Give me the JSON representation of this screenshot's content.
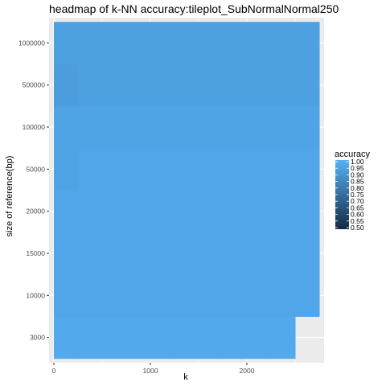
{
  "chart_data": {
    "type": "heatmap",
    "title": "headmap of k-NN accuracy:tileplot_SubNormalNormal250",
    "xlabel": "k",
    "ylabel": "size of reference(bp)",
    "x_ticks": [
      0,
      1000,
      2000
    ],
    "x_range": [
      -50,
      2800
    ],
    "y_categories": [
      "3000",
      "10000",
      "15000",
      "20000",
      "50000",
      "100000",
      "500000",
      "1000000"
    ],
    "k_values": [
      0,
      250,
      500,
      750,
      1000,
      1250,
      1500,
      1750,
      2000,
      2250,
      2500
    ],
    "k_max_per_row": [
      2500,
      2750,
      2750,
      2750,
      2750,
      2750,
      2750,
      2750
    ],
    "accuracy_by_row": [
      [
        0.97,
        0.97,
        0.97,
        0.97,
        0.97,
        0.97,
        0.97,
        0.97,
        0.97,
        0.97,
        0.97
      ],
      [
        0.96,
        0.96,
        0.96,
        0.96,
        0.96,
        0.96,
        0.96,
        0.96,
        0.96,
        0.96,
        0.96
      ],
      [
        0.96,
        0.96,
        0.96,
        0.96,
        0.96,
        0.96,
        0.96,
        0.96,
        0.96,
        0.96,
        0.96
      ],
      [
        0.96,
        0.96,
        0.96,
        0.96,
        0.96,
        0.96,
        0.96,
        0.96,
        0.96,
        0.96,
        0.96
      ],
      [
        0.95,
        0.96,
        0.96,
        0.96,
        0.96,
        0.96,
        0.96,
        0.96,
        0.96,
        0.96,
        0.96
      ],
      [
        0.95,
        0.95,
        0.95,
        0.95,
        0.95,
        0.95,
        0.95,
        0.95,
        0.95,
        0.95,
        0.95
      ],
      [
        0.93,
        0.94,
        0.94,
        0.94,
        0.94,
        0.94,
        0.94,
        0.94,
        0.94,
        0.94,
        0.94
      ],
      [
        0.94,
        0.94,
        0.94,
        0.94,
        0.94,
        0.94,
        0.94,
        0.94,
        0.94,
        0.94,
        0.94
      ]
    ],
    "legend": {
      "title": "accuracy",
      "placement": "right",
      "breaks": [
        "1.00",
        "0.95",
        "0.90",
        "0.85",
        "0.80",
        "0.75",
        "0.70",
        "0.65",
        "0.60",
        "0.55",
        "0.50"
      ],
      "low_color": "#132B43",
      "high_color": "#56B1F7",
      "limits": [
        0.5,
        1.0
      ]
    },
    "panel_background": "#EBEBEB",
    "grid_color": "#FFFFFF",
    "grid": true
  }
}
